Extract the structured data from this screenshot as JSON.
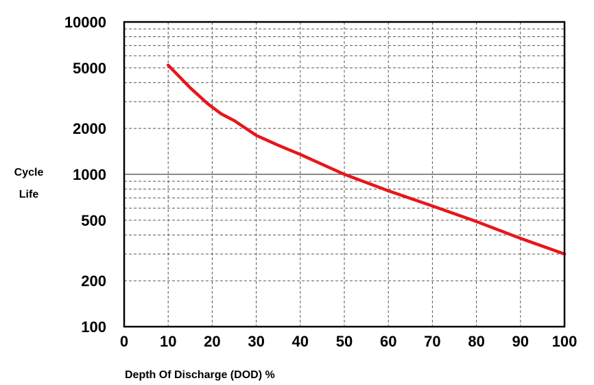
{
  "chart_data": {
    "type": "line",
    "title": "",
    "xlabel": "Depth Of Discharge (DOD) %",
    "ylabel_lines": [
      "Cycle",
      "Life"
    ],
    "x_scale": "linear",
    "y_scale": "log",
    "xlim": [
      0,
      100
    ],
    "ylim": [
      100,
      10000
    ],
    "x_ticks": [
      0,
      10,
      20,
      30,
      40,
      50,
      60,
      70,
      80,
      90,
      100
    ],
    "x_tick_labels": [
      "0",
      "10",
      "20",
      "30",
      "40",
      "50",
      "60",
      "70",
      "80",
      "90",
      "100"
    ],
    "y_ticks": [
      100,
      200,
      500,
      1000,
      2000,
      5000,
      10000
    ],
    "y_tick_labels": [
      "100",
      "200",
      "500",
      "1000",
      "2000",
      "5000",
      "10000"
    ],
    "grid": true,
    "legend": "none",
    "series": [
      {
        "color": "#e8151b",
        "x": [
          10,
          15,
          19,
          22,
          25,
          30,
          35,
          40,
          50,
          60,
          70,
          80,
          90,
          100
        ],
        "y": [
          5200,
          3700,
          2900,
          2500,
          2250,
          1800,
          1550,
          1350,
          1000,
          780,
          620,
          490,
          380,
          300
        ]
      }
    ]
  }
}
